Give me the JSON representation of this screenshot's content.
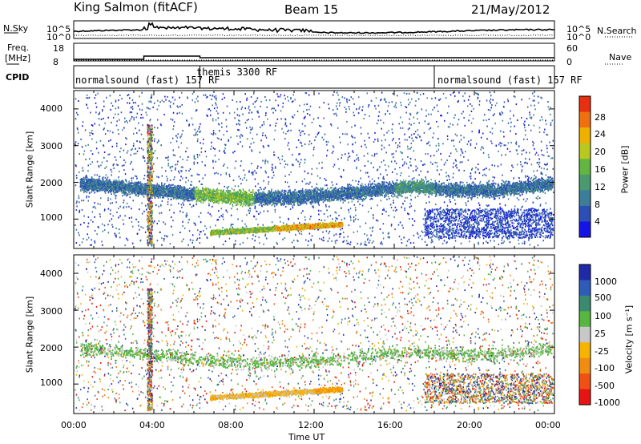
{
  "header": {
    "station": "King Salmon (fitACF)",
    "beam": "Beam 15",
    "date": "21/May/2012"
  },
  "side_labels": {
    "nsky": "N.Sky",
    "nsearch": "N.Search",
    "freq": "Freq.",
    "freq_unit": "[MHz]",
    "nave": "Nave",
    "cpid": "CPID"
  },
  "noise_panel": {
    "left_ticks": [
      "10^5",
      "10^0"
    ],
    "right_ticks": [
      "10^5",
      "10^0"
    ]
  },
  "freq_panel": {
    "left_ticks": [
      "18",
      "8"
    ],
    "right_ticks": [
      "60",
      "0"
    ]
  },
  "cpid_segments": [
    {
      "label": "normalsound (fast) 157 RF",
      "start_hour": 0,
      "end_hour": 6.3
    },
    {
      "label": "themis 3300 RF",
      "start_hour": 6.3,
      "end_hour": 18
    },
    {
      "label": "normalsound (fast) 157 RF",
      "start_hour": 18,
      "end_hour": 24
    }
  ],
  "chart_data": [
    {
      "type": "heatmap",
      "quantity": "Power",
      "ylabel": "Slant Range [km]",
      "xlim": [
        0,
        24
      ],
      "ylim": [
        200,
        4500
      ],
      "y_ticks": [
        "1000",
        "2000",
        "3000",
        "4000"
      ],
      "colorbar": {
        "label": "Power [dB]",
        "ticks": [
          "4",
          "8",
          "12",
          "16",
          "20",
          "24",
          "28"
        ],
        "range": [
          0,
          30
        ],
        "colors": [
          "#1414e6",
          "#2d4fb5",
          "#3c7d9a",
          "#4a9a6e",
          "#62b640",
          "#b8c820",
          "#f0b000",
          "#f07010",
          "#e83010"
        ]
      }
    },
    {
      "type": "heatmap",
      "quantity": "Velocity",
      "ylabel": "Slant Range [km]",
      "xlabel": "Time UT",
      "xlim": [
        0,
        24
      ],
      "ylim": [
        200,
        4500
      ],
      "x_ticks": [
        "00:00",
        "04:00",
        "08:00",
        "12:00",
        "16:00",
        "20:00",
        "00:00"
      ],
      "y_ticks": [
        "1000",
        "2000",
        "3000",
        "4000"
      ],
      "colorbar": {
        "label": "Velocity [m s⁻¹]",
        "ticks": [
          "1000",
          "500",
          "100",
          "25",
          "-25",
          "-100",
          "-500",
          "-1000"
        ],
        "colors": [
          "#1e2aa8",
          "#2f5cb8",
          "#3a8a70",
          "#56b640",
          "#c8c8c8",
          "#f4b400",
          "#f08c10",
          "#f05014",
          "#e81414"
        ]
      }
    }
  ]
}
